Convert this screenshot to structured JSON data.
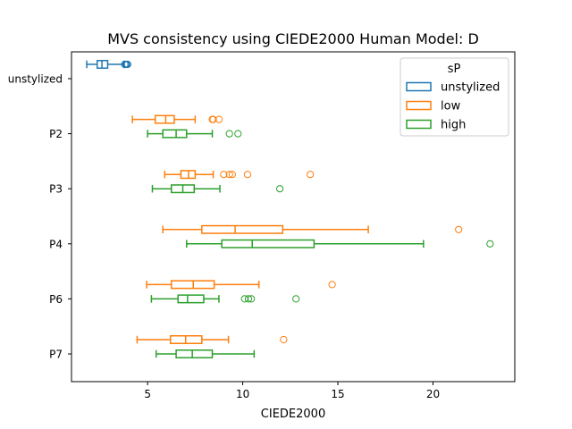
{
  "chart_data": {
    "type": "box",
    "orientation": "horizontal",
    "title": "MVS consistency using CIEDE2000 Human Model: D",
    "xlabel": "CIEDE2000",
    "ylabel": "",
    "xlim": [
      1.0,
      24.3
    ],
    "xticks": [
      5,
      10,
      15,
      20
    ],
    "grid": false,
    "legend": {
      "title": "sP",
      "placement": "top-right",
      "entries": [
        "unstylized",
        "low",
        "high"
      ]
    },
    "colors": {
      "unstylized": "#1f77b4",
      "low": "#ff7f0e",
      "high": "#2ca02c"
    },
    "categories": [
      "unstylized",
      "P2",
      "P3",
      "P4",
      "P6",
      "P7"
    ],
    "boxes": [
      {
        "category": "unstylized",
        "series": "unstylized",
        "whislo": 1.8,
        "q1": 2.35,
        "med": 2.6,
        "q3": 2.9,
        "whishi": 3.75,
        "fliers": [
          3.8,
          3.85,
          3.9,
          3.95
        ]
      },
      {
        "category": "P2",
        "series": "low",
        "whislo": 4.2,
        "q1": 5.4,
        "med": 5.95,
        "q3": 6.4,
        "whishi": 7.5,
        "fliers": [
          8.4,
          8.45,
          8.75
        ]
      },
      {
        "category": "P2",
        "series": "high",
        "whislo": 5.0,
        "q1": 5.8,
        "med": 6.5,
        "q3": 7.05,
        "whishi": 8.4,
        "fliers": [
          9.3,
          9.75
        ]
      },
      {
        "category": "P3",
        "series": "low",
        "whislo": 5.9,
        "q1": 6.75,
        "med": 7.15,
        "q3": 7.5,
        "whishi": 8.45,
        "fliers": [
          9.0,
          9.3,
          9.45,
          10.25,
          13.55
        ]
      },
      {
        "category": "P3",
        "series": "high",
        "whislo": 5.25,
        "q1": 6.25,
        "med": 6.85,
        "q3": 7.45,
        "whishi": 8.8,
        "fliers": [
          11.95
        ]
      },
      {
        "category": "P4",
        "series": "low",
        "whislo": 5.8,
        "q1": 7.85,
        "med": 9.6,
        "q3": 12.1,
        "whishi": 16.6,
        "fliers": [
          21.35
        ]
      },
      {
        "category": "P4",
        "series": "high",
        "whislo": 7.05,
        "q1": 8.9,
        "med": 10.5,
        "q3": 13.75,
        "whishi": 19.5,
        "fliers": [
          23.0
        ]
      },
      {
        "category": "P6",
        "series": "low",
        "whislo": 4.95,
        "q1": 6.25,
        "med": 7.4,
        "q3": 8.5,
        "whishi": 10.85,
        "fliers": [
          14.7
        ]
      },
      {
        "category": "P6",
        "series": "high",
        "whislo": 5.2,
        "q1": 6.6,
        "med": 7.1,
        "q3": 7.95,
        "whishi": 8.75,
        "fliers": [
          10.1,
          10.3,
          10.45,
          12.8
        ]
      },
      {
        "category": "P7",
        "series": "low",
        "whislo": 4.45,
        "q1": 6.2,
        "med": 7.0,
        "q3": 7.85,
        "whishi": 9.25,
        "fliers": [
          12.15
        ]
      },
      {
        "category": "P7",
        "series": "high",
        "whislo": 5.45,
        "q1": 6.5,
        "med": 7.35,
        "q3": 8.4,
        "whishi": 10.6,
        "fliers": []
      }
    ]
  }
}
